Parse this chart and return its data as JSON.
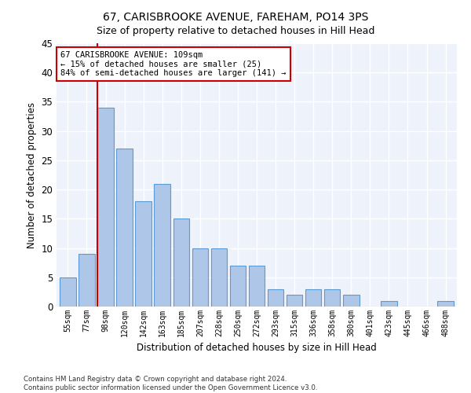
{
  "title": "67, CARISBROOKE AVENUE, FAREHAM, PO14 3PS",
  "subtitle": "Size of property relative to detached houses in Hill Head",
  "xlabel": "Distribution of detached houses by size in Hill Head",
  "ylabel": "Number of detached properties",
  "categories": [
    "55sqm",
    "77sqm",
    "98sqm",
    "120sqm",
    "142sqm",
    "163sqm",
    "185sqm",
    "207sqm",
    "228sqm",
    "250sqm",
    "272sqm",
    "293sqm",
    "315sqm",
    "336sqm",
    "358sqm",
    "380sqm",
    "401sqm",
    "423sqm",
    "445sqm",
    "466sqm",
    "488sqm"
  ],
  "values": [
    5,
    9,
    34,
    27,
    18,
    21,
    15,
    10,
    10,
    7,
    7,
    3,
    2,
    3,
    3,
    2,
    0,
    1,
    0,
    0,
    1
  ],
  "bar_color": "#aec6e8",
  "bar_edge_color": "#5b9bd5",
  "vline_color": "#cc0000",
  "annotation_text": "67 CARISBROOKE AVENUE: 109sqm\n← 15% of detached houses are smaller (25)\n84% of semi-detached houses are larger (141) →",
  "annotation_box_edge": "#cc0000",
  "ylim": [
    0,
    45
  ],
  "yticks": [
    0,
    5,
    10,
    15,
    20,
    25,
    30,
    35,
    40,
    45
  ],
  "background_color": "#eef2fb",
  "footer_line1": "Contains HM Land Registry data © Crown copyright and database right 2024.",
  "footer_line2": "Contains public sector information licensed under the Open Government Licence v3.0."
}
